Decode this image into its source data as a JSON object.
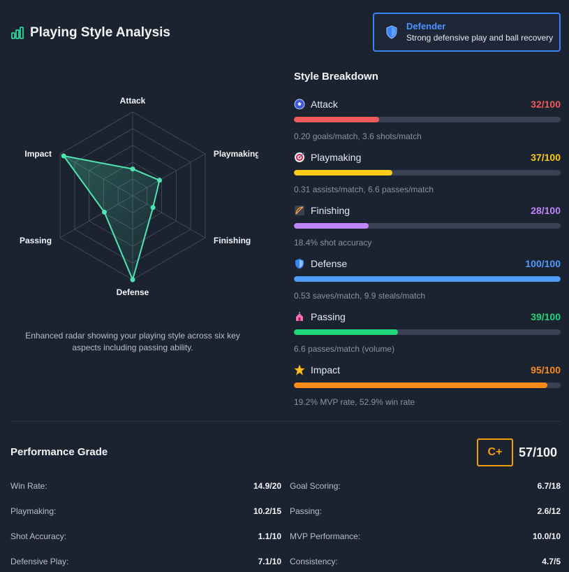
{
  "header": {
    "title": "Playing Style Analysis",
    "icon": "bar-chart-icon",
    "accent": "#34d399"
  },
  "style_badge": {
    "title": "Defender",
    "description": "Strong defensive play and ball recovery",
    "icon": "shield-icon",
    "color": "#3b82f6"
  },
  "radar": {
    "axes": [
      "Attack",
      "Playmaking",
      "Finishing",
      "Defense",
      "Passing",
      "Impact"
    ],
    "values": [
      32,
      37,
      28,
      100,
      39,
      95
    ],
    "max": 100,
    "line_color": "#4ee6b0",
    "caption": "Enhanced radar showing your playing style across six key aspects including passing ability."
  },
  "breakdown": {
    "title": "Style Breakdown",
    "items": [
      {
        "name": "Attack",
        "score": "32/100",
        "value": 32,
        "color": "#f05a5a",
        "desc": "0.20 goals/match, 3.6 shots/match",
        "icon": "soccer-ball-icon"
      },
      {
        "name": "Playmaking",
        "score": "37/100",
        "value": 37,
        "color": "#facc15",
        "desc": "0.31 assists/match, 6.6 passes/match",
        "icon": "target-icon"
      },
      {
        "name": "Finishing",
        "score": "28/100",
        "value": 28,
        "color": "#c084fc",
        "desc": "18.4% shot accuracy",
        "icon": "bow-arrow-icon"
      },
      {
        "name": "Defense",
        "score": "100/100",
        "value": 100,
        "color": "#4f9cf9",
        "desc": "0.53 saves/match, 9.9 steals/match",
        "icon": "shield-icon"
      },
      {
        "name": "Passing",
        "score": "39/100",
        "value": 39,
        "color": "#1fd67a",
        "desc": "6.6 passes/match (volume)",
        "icon": "network-icon"
      },
      {
        "name": "Impact",
        "score": "95/100",
        "value": 95,
        "color": "#fb8c1a",
        "desc": "19.2% MVP rate, 52.9% win rate",
        "icon": "star-icon"
      }
    ]
  },
  "performance": {
    "title": "Performance Grade",
    "grade": "C+",
    "score": "57/100",
    "grade_color": "#f59e0b",
    "left_metrics": [
      {
        "label": "Win Rate:",
        "value": "14.9/20"
      },
      {
        "label": "Playmaking:",
        "value": "10.2/15"
      },
      {
        "label": "Shot Accuracy:",
        "value": "1.1/10"
      },
      {
        "label": "Defensive Play:",
        "value": "7.1/10"
      }
    ],
    "right_metrics": [
      {
        "label": "Goal Scoring:",
        "value": "6.7/18"
      },
      {
        "label": "Passing:",
        "value": "2.6/12"
      },
      {
        "label": "MVP Performance:",
        "value": "10.0/10"
      },
      {
        "label": "Consistency:",
        "value": "4.7/5"
      }
    ]
  }
}
